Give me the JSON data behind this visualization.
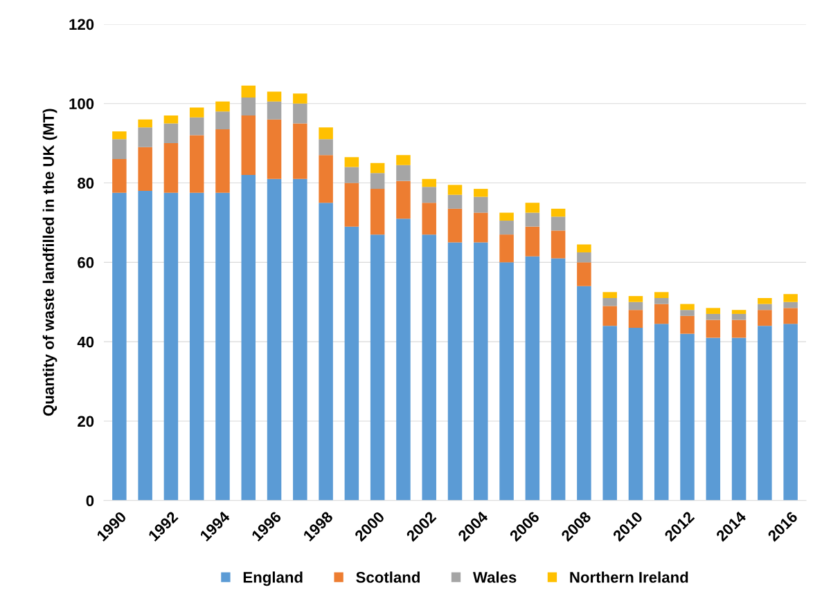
{
  "chart_data": {
    "type": "bar",
    "stacked": true,
    "ylabel": "Quantity of waste landfilled in the UK (MT)",
    "categories": [
      "1990",
      null,
      "1992",
      null,
      "1994",
      null,
      "1996",
      null,
      "1998",
      null,
      "2000",
      null,
      "2002",
      null,
      "2004",
      null,
      "2006",
      null,
      "2008",
      null,
      "2010",
      null,
      "2012",
      null,
      "2014",
      null,
      "2016"
    ],
    "series": [
      {
        "name": "England",
        "color": "#5b9bd5",
        "values": [
          77.5,
          78,
          77.5,
          77.5,
          77.5,
          82,
          81,
          81,
          75,
          69,
          67,
          71,
          67,
          65,
          65,
          60,
          61.5,
          61,
          54,
          44,
          43.5,
          44.5,
          42,
          41,
          41,
          44,
          44.5
        ]
      },
      {
        "name": "Scotland",
        "color": "#ed7d31",
        "values": [
          8.5,
          11,
          12.5,
          14.5,
          16,
          15,
          15,
          14,
          12,
          11,
          11.5,
          9.5,
          8,
          8.5,
          7.5,
          7,
          7.5,
          7,
          6,
          5,
          4.5,
          5,
          4.5,
          4.5,
          4.5,
          4,
          4
        ]
      },
      {
        "name": "Wales",
        "color": "#a5a5a5",
        "values": [
          5,
          5,
          5,
          4.5,
          4.5,
          4.5,
          4.5,
          5,
          4,
          4,
          4,
          4,
          4,
          3.5,
          4,
          3.5,
          3.5,
          3.5,
          2.5,
          2,
          2,
          1.5,
          1.5,
          1.5,
          1.5,
          1.5,
          1.5
        ]
      },
      {
        "name": "Northern Ireland",
        "color": "#ffc000",
        "values": [
          2,
          2,
          2,
          2.5,
          2.5,
          3,
          2.5,
          2.5,
          3,
          2.5,
          2.5,
          2.5,
          2,
          2.5,
          2,
          2,
          2.5,
          2,
          2,
          1.5,
          1.5,
          1.5,
          1.5,
          1.5,
          1,
          1.5,
          2
        ]
      }
    ],
    "ylim": [
      0,
      120
    ],
    "yticks": [
      0,
      20,
      40,
      60,
      80,
      100,
      120
    ],
    "grid": "y",
    "legend": "bottom"
  }
}
